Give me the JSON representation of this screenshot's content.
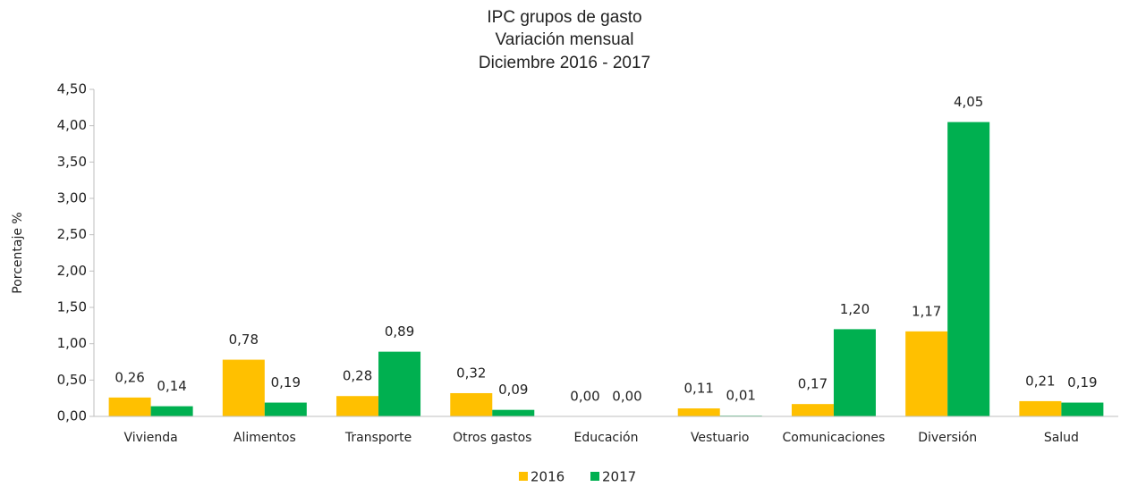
{
  "chart_data": {
    "type": "bar",
    "title": "IPC grupos de gasto",
    "subtitle": [
      "Variación mensual",
      "Diciembre 2016 - 2017"
    ],
    "y_label": "Porcentaje %",
    "categories": [
      "Vivienda",
      "Alimentos",
      "Transporte",
      "Otros gastos",
      "Educación",
      "Vestuario",
      "Comunicaciones",
      "Diversión",
      "Salud"
    ],
    "series": [
      {
        "name": "2016",
        "color": "#ffc000",
        "values": [
          0.26,
          0.78,
          0.28,
          0.32,
          0.0,
          0.11,
          0.17,
          1.17,
          0.21
        ],
        "value_labels": [
          "0,26",
          "0,78",
          "0,28",
          "0,32",
          "0,00",
          "0,11",
          "0,17",
          "1,17",
          "0,21"
        ]
      },
      {
        "name": "2017",
        "color": "#00b050",
        "values": [
          0.14,
          0.19,
          0.89,
          0.09,
          0.0,
          0.01,
          1.2,
          4.05,
          0.19
        ],
        "value_labels": [
          "0,14",
          "0,19",
          "0,89",
          "0,09",
          "0,00",
          "0,01",
          "1,20",
          "4,05",
          "0,19"
        ]
      }
    ],
    "ylim": [
      0,
      4.5
    ],
    "yticks": [
      {
        "value": 0,
        "label": "0,00"
      },
      {
        "value": 0.5,
        "label": "0,50"
      },
      {
        "value": 1,
        "label": "1,00"
      },
      {
        "value": 1.5,
        "label": "1,50"
      },
      {
        "value": 2,
        "label": "2,00"
      },
      {
        "value": 2.5,
        "label": "2,50"
      },
      {
        "value": 3,
        "label": "3,00"
      },
      {
        "value": 3.5,
        "label": "3,50"
      },
      {
        "value": 4,
        "label": "4,00"
      },
      {
        "value": 4.5,
        "label": "4,50"
      }
    ],
    "legend": "bottom",
    "grid": false
  }
}
